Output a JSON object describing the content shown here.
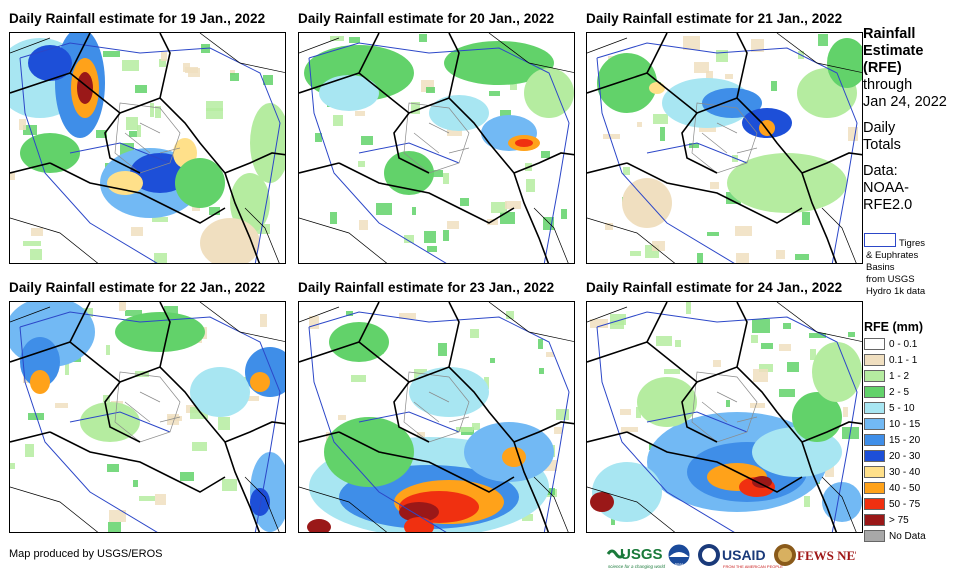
{
  "panels": [
    {
      "title": "Daily Rainfall estimate for 19 Jan., 2022",
      "heavy": true
    },
    {
      "title": "Daily Rainfall estimate for 20 Jan., 2022",
      "heavy": false
    },
    {
      "title": "Daily Rainfall estimate for 21 Jan., 2022",
      "heavy": false
    },
    {
      "title": "Daily Rainfall estimate for 22 Jan., 2022",
      "heavy": false
    },
    {
      "title": "Daily Rainfall estimate for 23 Jan., 2022",
      "heavy": true
    },
    {
      "title": "Daily Rainfall estimate for 24 Jan., 2022",
      "heavy": true
    }
  ],
  "sidebar": {
    "title_lines": [
      "Rainfall",
      "Estimate",
      "(RFE)"
    ],
    "through": "through",
    "date": "Jan 24, 2022",
    "daily": "Daily",
    "totals": "Totals",
    "data_label": "Data:",
    "source1": "NOAA-",
    "source2": "RFE2.0",
    "basin_label1": "Tigres",
    "basin_label2": "& Euphrates",
    "basin_label3": "Basins",
    "basin_label4": "from USGS",
    "basin_label5": "Hydro 1k data",
    "basin_color": "#2c47c8"
  },
  "legend": {
    "title": "RFE (mm)",
    "items": [
      {
        "label": "0 - 0.1",
        "color": "#ffffff"
      },
      {
        "label": "0.1 - 1",
        "color": "#f0dfc0"
      },
      {
        "label": "1 - 2",
        "color": "#b5eca0"
      },
      {
        "label": "2 - 5",
        "color": "#62d26a"
      },
      {
        "label": "5 - 10",
        "color": "#a8e6f2"
      },
      {
        "label": "10 - 15",
        "color": "#72b9f4"
      },
      {
        "label": "15 - 20",
        "color": "#3f8ee8"
      },
      {
        "label": "20 - 30",
        "color": "#1d4fd8"
      },
      {
        "label": "30 - 40",
        "color": "#ffe08a"
      },
      {
        "label": "40 - 50",
        "color": "#ffa21a"
      },
      {
        "label": "50 - 75",
        "color": "#f03010"
      },
      {
        "label": "> 75",
        "color": "#9a1818"
      },
      {
        "label": "No Data",
        "color": "#a8a8a8"
      }
    ]
  },
  "credit": "Map produced by USGS/EROS",
  "logos": {
    "usgs": "USGS",
    "usgs_tag": "science for a changing world",
    "noaa": "NOAA",
    "usaid": "USAID",
    "usaid_tag": "FROM THE AMERICAN PEOPLE",
    "fewsnet": "FEWS NET"
  }
}
